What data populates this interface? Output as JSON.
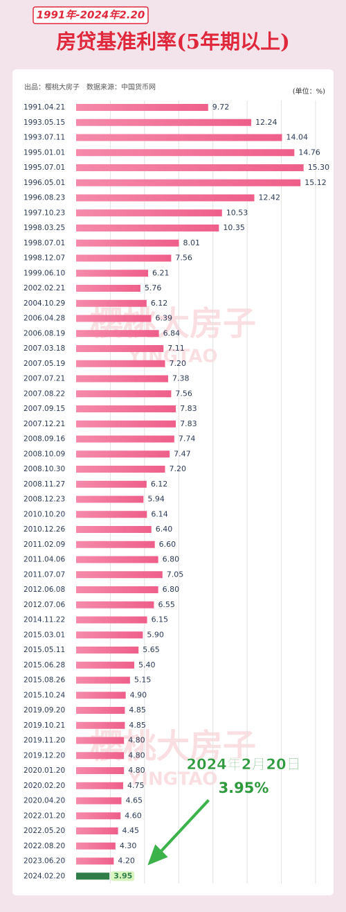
{
  "chart_data": {
    "type": "bar",
    "orientation": "horizontal",
    "banner": "1991年-2024年2.20",
    "title": "房贷基准利率(5年期以上)",
    "source": "出品：樱桃大房子　数据来源：中国货币网",
    "unit": "(单位：%)",
    "watermark": [
      "樱桃大房子",
      "YINGTAO"
    ],
    "annotation": [
      "2024年2月20日",
      "3.95%"
    ],
    "categories": [
      "1991.04.21",
      "1993.05.15",
      "1993.07.11",
      "1995.01.01",
      "1995.07.01",
      "1996.05.01",
      "1996.08.23",
      "1997.10.23",
      "1998.03.25",
      "1998.07.01",
      "1998.12.07",
      "1999.06.10",
      "2002.02.21",
      "2004.10.29",
      "2006.04.28",
      "2006.08.19",
      "2007.03.18",
      "2007.05.19",
      "2007.07.21",
      "2007.08.22",
      "2007.09.15",
      "2007.12.21",
      "2008.09.16",
      "2008.10.09",
      "2008.10.30",
      "2008.11.27",
      "2008.12.23",
      "2010.10.20",
      "2010.12.26",
      "2011.02.09",
      "2011.04.06",
      "2011.07.07",
      "2012.06.08",
      "2012.07.06",
      "2014.11.22",
      "2015.03.01",
      "2015.05.11",
      "2015.06.28",
      "2015.08.26",
      "2015.10.24",
      "2019.09.20",
      "2019.10.21",
      "2019.11.20",
      "2019.12.20",
      "2020.01.20",
      "2020.02.20",
      "2020.04.20",
      "2022.01.20",
      "2022.05.20",
      "2022.08.20",
      "2023.06.20",
      "2024.02.20"
    ],
    "values": [
      9.72,
      12.24,
      14.04,
      14.76,
      15.3,
      15.12,
      12.42,
      10.53,
      10.35,
      8.01,
      7.56,
      6.21,
      5.76,
      6.12,
      6.39,
      6.84,
      7.11,
      7.2,
      7.38,
      7.56,
      7.83,
      7.83,
      7.74,
      7.47,
      7.2,
      6.12,
      5.94,
      6.14,
      6.4,
      6.6,
      6.8,
      7.05,
      6.8,
      6.55,
      6.15,
      5.9,
      5.65,
      5.4,
      5.15,
      4.9,
      4.85,
      4.85,
      4.8,
      4.8,
      4.8,
      4.75,
      4.65,
      4.6,
      4.45,
      4.3,
      4.2,
      3.95
    ],
    "value_labels": [
      "9.72",
      "12.24",
      "14.04",
      "14.76",
      "15.30",
      "15.12",
      "12.42",
      "10.53",
      "10.35",
      "8.01",
      "7.56",
      "6.21",
      "5.76",
      "6.12",
      "6.39",
      "6.84",
      "7.11",
      "7.20",
      "7.38",
      "7.56",
      "7.83",
      "7.83",
      "7.74",
      "7.47",
      "7.20",
      "6.12",
      "5.94",
      "6.14",
      "6.40",
      "6.60",
      "6.80",
      "7.05",
      "6.80",
      "6.55",
      "6.15",
      "5.90",
      "5.65",
      "5.40",
      "5.15",
      "4.90",
      "4.85",
      "4.85",
      "4.80",
      "4.80",
      "4.80",
      "4.75",
      "4.65",
      "4.60",
      "4.45",
      "4.30",
      "4.20",
      "3.95"
    ],
    "color": "#f26d94",
    "highlight_color": "#2f7d48",
    "xlim": [
      2,
      16
    ],
    "xticks": [
      4,
      6,
      8,
      10,
      12,
      14,
      16
    ],
    "grid": true
  }
}
